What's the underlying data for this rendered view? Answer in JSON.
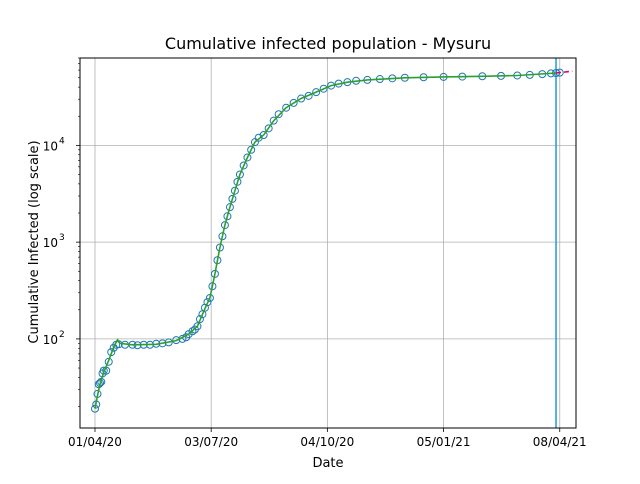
{
  "chart_data": {
    "type": "scatter",
    "title": "Cumulative infected population - Mysuru",
    "xlabel": "Date",
    "ylabel": "Cumulative Infected (log scale)",
    "yscale": "log",
    "grid": true,
    "x_ticks": [
      "01/04/20",
      "03/07/20",
      "04/10/20",
      "05/01/21",
      "08/04/21"
    ],
    "x_tick_dates": [
      "2020-04-01",
      "2020-07-03",
      "2020-10-04",
      "2021-01-05",
      "2021-04-08"
    ],
    "xlim": [
      "2020-03-20",
      "2021-04-21"
    ],
    "y_ticks": [
      {
        "value": 100,
        "label": "10",
        "exp": "2"
      },
      {
        "value": 1000,
        "label": "10",
        "exp": "3"
      },
      {
        "value": 10000,
        "label": "10",
        "exp": "4"
      }
    ],
    "ylim": [
      12,
      80000
    ],
    "vertical_line": {
      "date": "2021-04-05",
      "color": "#1f9bd8"
    },
    "series": [
      {
        "style": "hollow-circles",
        "color": "#1f77b4",
        "points": [
          [
            "2020-04-01",
            19
          ],
          [
            "2020-04-02",
            21
          ],
          [
            "2020-04-03",
            27
          ],
          [
            "2020-04-04",
            34
          ],
          [
            "2020-04-05",
            35
          ],
          [
            "2020-04-06",
            36
          ],
          [
            "2020-04-07",
            44
          ],
          [
            "2020-04-08",
            47
          ],
          [
            "2020-04-10",
            47
          ],
          [
            "2020-04-12",
            58
          ],
          [
            "2020-04-14",
            73
          ],
          [
            "2020-04-16",
            81
          ],
          [
            "2020-04-18",
            87
          ],
          [
            "2020-04-20",
            88
          ],
          [
            "2020-04-25",
            87
          ],
          [
            "2020-05-01",
            87
          ],
          [
            "2020-05-05",
            86
          ],
          [
            "2020-05-10",
            87
          ],
          [
            "2020-05-15",
            87
          ],
          [
            "2020-05-20",
            89
          ],
          [
            "2020-05-25",
            90
          ],
          [
            "2020-05-30",
            92
          ],
          [
            "2020-06-05",
            97
          ],
          [
            "2020-06-10",
            100
          ],
          [
            "2020-06-13",
            104
          ],
          [
            "2020-06-15",
            112
          ],
          [
            "2020-06-18",
            120
          ],
          [
            "2020-06-20",
            125
          ],
          [
            "2020-06-22",
            135
          ],
          [
            "2020-06-24",
            160
          ],
          [
            "2020-06-26",
            180
          ],
          [
            "2020-06-28",
            210
          ],
          [
            "2020-06-30",
            240
          ],
          [
            "2020-07-02",
            265
          ],
          [
            "2020-07-04",
            350
          ],
          [
            "2020-07-06",
            470
          ],
          [
            "2020-07-08",
            650
          ],
          [
            "2020-07-10",
            880
          ],
          [
            "2020-07-12",
            1150
          ],
          [
            "2020-07-14",
            1500
          ],
          [
            "2020-07-16",
            1850
          ],
          [
            "2020-07-18",
            2300
          ],
          [
            "2020-07-20",
            2800
          ],
          [
            "2020-07-22",
            3400
          ],
          [
            "2020-07-24",
            4200
          ],
          [
            "2020-07-26",
            5000
          ],
          [
            "2020-07-29",
            6200
          ],
          [
            "2020-08-01",
            7500
          ],
          [
            "2020-08-04",
            9000
          ],
          [
            "2020-08-07",
            10800
          ],
          [
            "2020-08-10",
            12000
          ],
          [
            "2020-08-14",
            12800
          ],
          [
            "2020-08-18",
            15000
          ],
          [
            "2020-08-22",
            18000
          ],
          [
            "2020-08-26",
            21000
          ],
          [
            "2020-09-01",
            24500
          ],
          [
            "2020-09-07",
            27500
          ],
          [
            "2020-09-13",
            30500
          ],
          [
            "2020-09-19",
            32500
          ],
          [
            "2020-09-25",
            35500
          ],
          [
            "2020-10-01",
            38500
          ],
          [
            "2020-10-07",
            41500
          ],
          [
            "2020-10-13",
            43500
          ],
          [
            "2020-10-20",
            45000
          ],
          [
            "2020-10-27",
            46500
          ],
          [
            "2020-11-05",
            47500
          ],
          [
            "2020-11-15",
            48500
          ],
          [
            "2020-11-25",
            49300
          ],
          [
            "2020-12-05",
            50000
          ],
          [
            "2020-12-20",
            50600
          ],
          [
            "2021-01-05",
            51000
          ],
          [
            "2021-01-20",
            51400
          ],
          [
            "2021-02-05",
            51800
          ],
          [
            "2021-02-20",
            52300
          ],
          [
            "2021-03-05",
            52800
          ],
          [
            "2021-03-15",
            53500
          ],
          [
            "2021-03-25",
            54500
          ],
          [
            "2021-04-01",
            55500
          ],
          [
            "2021-04-05",
            56000
          ],
          [
            "2021-04-08",
            56500
          ]
        ]
      },
      {
        "style": "line",
        "color": "#2ca02c",
        "points": [
          [
            "2020-04-01",
            19
          ],
          [
            "2020-04-03",
            26
          ],
          [
            "2020-04-05",
            34
          ],
          [
            "2020-04-08",
            45
          ],
          [
            "2020-04-12",
            60
          ],
          [
            "2020-04-16",
            82
          ],
          [
            "2020-04-19",
            98
          ],
          [
            "2020-04-21",
            90
          ],
          [
            "2020-05-01",
            87
          ],
          [
            "2020-05-20",
            88
          ],
          [
            "2020-06-05",
            96
          ],
          [
            "2020-06-15",
            112
          ],
          [
            "2020-06-22",
            135
          ],
          [
            "2020-06-28",
            205
          ],
          [
            "2020-07-02",
            265
          ],
          [
            "2020-07-06",
            470
          ],
          [
            "2020-07-10",
            880
          ],
          [
            "2020-07-14",
            1500
          ],
          [
            "2020-07-18",
            2300
          ],
          [
            "2020-07-22",
            3400
          ],
          [
            "2020-07-26",
            5000
          ],
          [
            "2020-08-01",
            7500
          ],
          [
            "2020-08-07",
            10800
          ],
          [
            "2020-08-14",
            12800
          ],
          [
            "2020-08-22",
            18000
          ],
          [
            "2020-09-01",
            24500
          ],
          [
            "2020-09-13",
            30500
          ],
          [
            "2020-09-25",
            35500
          ],
          [
            "2020-10-07",
            41500
          ],
          [
            "2020-10-20",
            45000
          ],
          [
            "2020-11-05",
            47500
          ],
          [
            "2020-12-05",
            50000
          ],
          [
            "2021-01-05",
            51000
          ],
          [
            "2021-02-05",
            51800
          ],
          [
            "2021-03-05",
            52800
          ],
          [
            "2021-04-05",
            56000
          ]
        ]
      },
      {
        "style": "dashed-line",
        "color": "#e4006a",
        "points": [
          [
            "2021-04-05",
            56000
          ],
          [
            "2021-04-18",
            58500
          ]
        ]
      }
    ]
  }
}
